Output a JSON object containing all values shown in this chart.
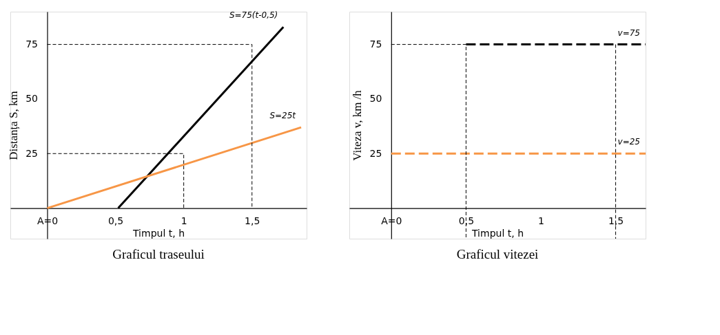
{
  "chart_data": [
    {
      "type": "line",
      "title": "Graficul traseului",
      "xlabel": "Timpul t, h",
      "ylabel": "Distanța S, km",
      "xlim": [
        -0.27,
        1.9
      ],
      "ylim": [
        -14,
        90
      ],
      "xticks": [
        {
          "value": 0,
          "label": "A=0"
        },
        {
          "value": 0.5,
          "label": "0,5"
        },
        {
          "value": 1,
          "label": "1"
        },
        {
          "value": 1.5,
          "label": "1,5"
        }
      ],
      "yticks": [
        25,
        50,
        75
      ],
      "grid": false,
      "marker": "none",
      "series": [
        {
          "color": "#000000",
          "x": [
            0.52,
            1.73
          ],
          "values": [
            0,
            83
          ],
          "line_style": "solid"
        },
        {
          "color": "#f79646",
          "x": [
            0,
            1.86
          ],
          "values": [
            0,
            37
          ],
          "line_style": "solid"
        },
        {
          "color": "#000000",
          "x": [
            0,
            1.5,
            1.5
          ],
          "values": [
            75,
            75,
            0
          ],
          "line_style": "dotted"
        },
        {
          "color": "#000000",
          "x": [
            0,
            1,
            1
          ],
          "values": [
            25,
            25,
            0
          ],
          "line_style": "dotted"
        }
      ],
      "annotations": [
        "S=75(t-0,5)",
        "S=25t"
      ]
    },
    {
      "type": "line",
      "title": "Graficul vitezei",
      "xlabel": "Timpul t, h",
      "ylabel": "Viteza v, km /h",
      "xlim": [
        -0.28,
        1.7
      ],
      "ylim": [
        -14,
        90
      ],
      "xticks": [
        {
          "value": 0,
          "label": "A=0"
        },
        {
          "value": 0.5,
          "label": "0,5"
        },
        {
          "value": 1,
          "label": "1"
        },
        {
          "value": 1.5,
          "label": "1,5"
        }
      ],
      "yticks": [
        25,
        50,
        75
      ],
      "grid": false,
      "marker": "none",
      "series": [
        {
          "color": "#000000",
          "x": [
            0.5,
            1.7
          ],
          "values": [
            75,
            75
          ],
          "line_style": "dashed"
        },
        {
          "color": "#f79646",
          "x": [
            0,
            1.7
          ],
          "values": [
            25,
            25
          ],
          "line_style": "dashed"
        },
        {
          "color": "#000000",
          "x": [
            0,
            0.5,
            0.5
          ],
          "values": [
            75,
            75,
            -14
          ],
          "line_style": "dotted"
        },
        {
          "color": "#000000",
          "x": [
            1.5,
            1.5
          ],
          "values": [
            75,
            -14
          ],
          "line_style": "dotted"
        }
      ],
      "annotations": [
        "v=75",
        "v=25"
      ]
    }
  ]
}
